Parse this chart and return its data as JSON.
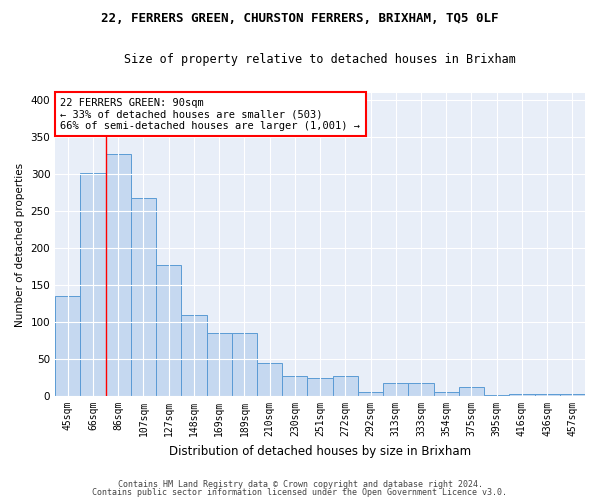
{
  "title1": "22, FERRERS GREEN, CHURSTON FERRERS, BRIXHAM, TQ5 0LF",
  "title2": "Size of property relative to detached houses in Brixham",
  "xlabel": "Distribution of detached houses by size in Brixham",
  "ylabel": "Number of detached properties",
  "categories": [
    "45sqm",
    "66sqm",
    "86sqm",
    "107sqm",
    "127sqm",
    "148sqm",
    "169sqm",
    "189sqm",
    "210sqm",
    "230sqm",
    "251sqm",
    "272sqm",
    "292sqm",
    "313sqm",
    "333sqm",
    "354sqm",
    "375sqm",
    "395sqm",
    "416sqm",
    "436sqm",
    "457sqm"
  ],
  "values": [
    135,
    302,
    328,
    268,
    178,
    110,
    85,
    85,
    45,
    27,
    25,
    27,
    5,
    17,
    17,
    5,
    12,
    2,
    3,
    3,
    3
  ],
  "bar_color": "#c5d8f0",
  "bar_edge_color": "#5b9bd5",
  "red_line_x": 1.5,
  "annotation_text_line1": "22 FERRERS GREEN: 90sqm",
  "annotation_text_line2": "← 33% of detached houses are smaller (503)",
  "annotation_text_line3": "66% of semi-detached houses are larger (1,001) →",
  "footer1": "Contains HM Land Registry data © Crown copyright and database right 2024.",
  "footer2": "Contains public sector information licensed under the Open Government Licence v3.0.",
  "bg_color": "#e8eef8",
  "ylim": [
    0,
    410
  ],
  "yticks": [
    0,
    50,
    100,
    150,
    200,
    250,
    300,
    350,
    400
  ]
}
